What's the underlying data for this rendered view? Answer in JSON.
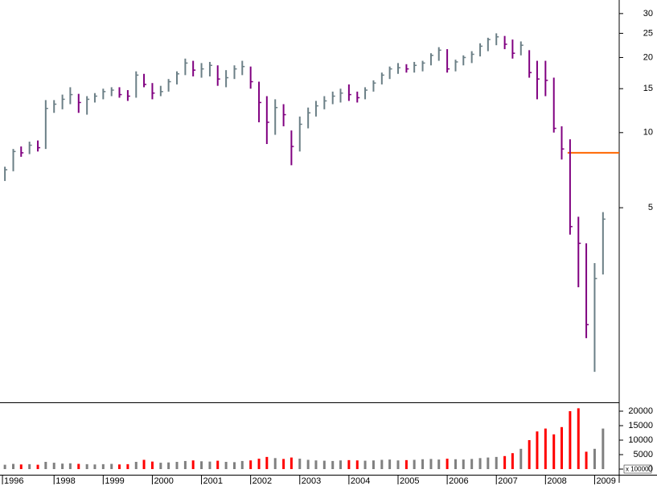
{
  "chart_data": {
    "type": "ohlc",
    "log_scale": true,
    "up_color": "#6b7f86",
    "down_color": "#800080",
    "volume_up_color": "#808080",
    "volume_down_color": "#ff0000",
    "x": [
      1997.0,
      1997.17,
      1997.33,
      1997.5,
      1997.67,
      1997.83,
      1998.0,
      1998.17,
      1998.33,
      1998.5,
      1998.67,
      1998.83,
      1999.0,
      1999.17,
      1999.33,
      1999.5,
      1999.67,
      1999.83,
      2000.0,
      2000.17,
      2000.33,
      2000.5,
      2000.67,
      2000.83,
      2001.0,
      2001.17,
      2001.33,
      2001.5,
      2001.67,
      2001.83,
      2002.0,
      2002.17,
      2002.33,
      2002.5,
      2002.67,
      2002.83,
      2003.0,
      2003.17,
      2003.33,
      2003.5,
      2003.67,
      2003.83,
      2004.0,
      2004.17,
      2004.33,
      2004.5,
      2004.67,
      2004.83,
      2005.0,
      2005.17,
      2005.33,
      2005.5,
      2005.67,
      2005.83,
      2006.0,
      2006.17,
      2006.33,
      2006.5,
      2006.67,
      2006.83,
      2007.0,
      2007.17,
      2007.33,
      2007.5,
      2007.67,
      2007.83,
      2008.0,
      2008.17,
      2008.33,
      2008.5,
      2008.67,
      2008.83,
      2009.0,
      2009.17
    ],
    "high": [
      7.3,
      8.6,
      8.8,
      9.2,
      9.3,
      13.5,
      13.5,
      14.2,
      15.2,
      14.3,
      14.0,
      14.4,
      15.0,
      15.2,
      15.2,
      14.8,
      17.6,
      17.2,
      15.8,
      15.4,
      16.4,
      17.6,
      19.8,
      19.4,
      19.0,
      19.2,
      18.6,
      17.8,
      18.6,
      19.4,
      18.4,
      16.0,
      14.0,
      13.6,
      13.0,
      10.2,
      11.6,
      12.6,
      13.4,
      14.0,
      14.6,
      15.0,
      15.6,
      14.6,
      15.2,
      16.2,
      17.4,
      18.4,
      19.0,
      18.8,
      19.2,
      19.4,
      20.8,
      22.0,
      21.6,
      19.6,
      20.4,
      21.2,
      22.8,
      24.0,
      25.0,
      24.4,
      23.6,
      23.2,
      21.4,
      19.4,
      19.4,
      16.6,
      10.6,
      9.4,
      4.6,
      3.6,
      3.0,
      4.8
    ],
    "low": [
      6.4,
      7.0,
      8.0,
      8.2,
      8.4,
      8.6,
      12.0,
      12.4,
      13.0,
      12.0,
      11.8,
      13.2,
      13.6,
      14.0,
      13.8,
      13.4,
      13.8,
      15.2,
      13.6,
      14.0,
      14.6,
      15.6,
      17.0,
      16.8,
      16.6,
      16.8,
      15.4,
      15.2,
      16.4,
      17.0,
      15.0,
      11.0,
      9.0,
      9.8,
      10.6,
      7.4,
      8.4,
      10.4,
      11.6,
      12.4,
      13.0,
      13.2,
      13.4,
      13.2,
      13.6,
      14.6,
      15.6,
      16.4,
      17.2,
      17.4,
      17.4,
      17.6,
      18.6,
      19.4,
      17.4,
      17.6,
      18.6,
      19.0,
      20.2,
      21.2,
      22.4,
      21.6,
      19.8,
      20.4,
      16.6,
      13.6,
      14.0,
      10.0,
      7.8,
      3.9,
      2.4,
      1.5,
      1.1,
      2.7
    ],
    "close": [
      7.1,
      8.4,
      8.3,
      8.9,
      8.7,
      12.5,
      13.0,
      13.6,
      14.2,
      13.2,
      13.6,
      14.0,
      14.6,
      14.8,
      14.2,
      14.0,
      17.0,
      15.6,
      14.4,
      14.6,
      16.0,
      17.2,
      19.0,
      17.8,
      18.0,
      18.6,
      16.4,
      16.6,
      18.0,
      18.4,
      16.0,
      13.2,
      11.0,
      12.6,
      11.8,
      8.8,
      10.8,
      12.0,
      12.8,
      13.4,
      14.0,
      14.4,
      14.2,
      13.8,
      14.8,
      15.8,
      17.0,
      18.0,
      18.2,
      18.0,
      18.6,
      19.0,
      20.4,
      21.4,
      18.0,
      19.2,
      20.0,
      20.6,
      22.2,
      23.6,
      24.2,
      22.6,
      20.8,
      22.4,
      17.4,
      16.4,
      16.2,
      10.4,
      8.6,
      4.2,
      3.6,
      1.7,
      2.6,
      4.5
    ],
    "volume": [
      1500,
      1800,
      1600,
      1700,
      1500,
      2500,
      2200,
      1900,
      2000,
      1800,
      1700,
      1600,
      1700,
      1800,
      1600,
      1700,
      2500,
      3200,
      2600,
      2200,
      2300,
      2500,
      2800,
      3000,
      2700,
      2600,
      2900,
      2500,
      2400,
      2800,
      3000,
      3600,
      4200,
      3800,
      3500,
      4000,
      3600,
      3200,
      3000,
      2900,
      2800,
      3000,
      3100,
      3000,
      2900,
      3000,
      3200,
      3300,
      3000,
      3100,
      3200,
      3400,
      3500,
      3300,
      3600,
      3400,
      3300,
      3500,
      3800,
      4000,
      4200,
      4500,
      5500,
      7000,
      10000,
      13000,
      14000,
      12000,
      14500,
      20000,
      21000,
      6000,
      7000,
      14000
    ],
    "xlim": [
      1996.9,
      2009.5
    ],
    "xticks": [
      {
        "value": 1996.95,
        "label": "1996"
      },
      1998,
      1999,
      2000,
      2001,
      2002,
      2003,
      2004,
      2005,
      2006,
      2007,
      2008,
      2009
    ],
    "ylim": [
      0.83,
      34
    ],
    "yticks": [
      5,
      10,
      15,
      20,
      25,
      30
    ],
    "reference_line": {
      "value": 8.3,
      "from_x": 2008.45,
      "color": "#ff6600"
    },
    "volume_ylim": [
      0,
      22500
    ],
    "volume_yticks": [
      0,
      5000,
      10000,
      15000,
      20000
    ],
    "volume_unit_label": "x 10000"
  }
}
